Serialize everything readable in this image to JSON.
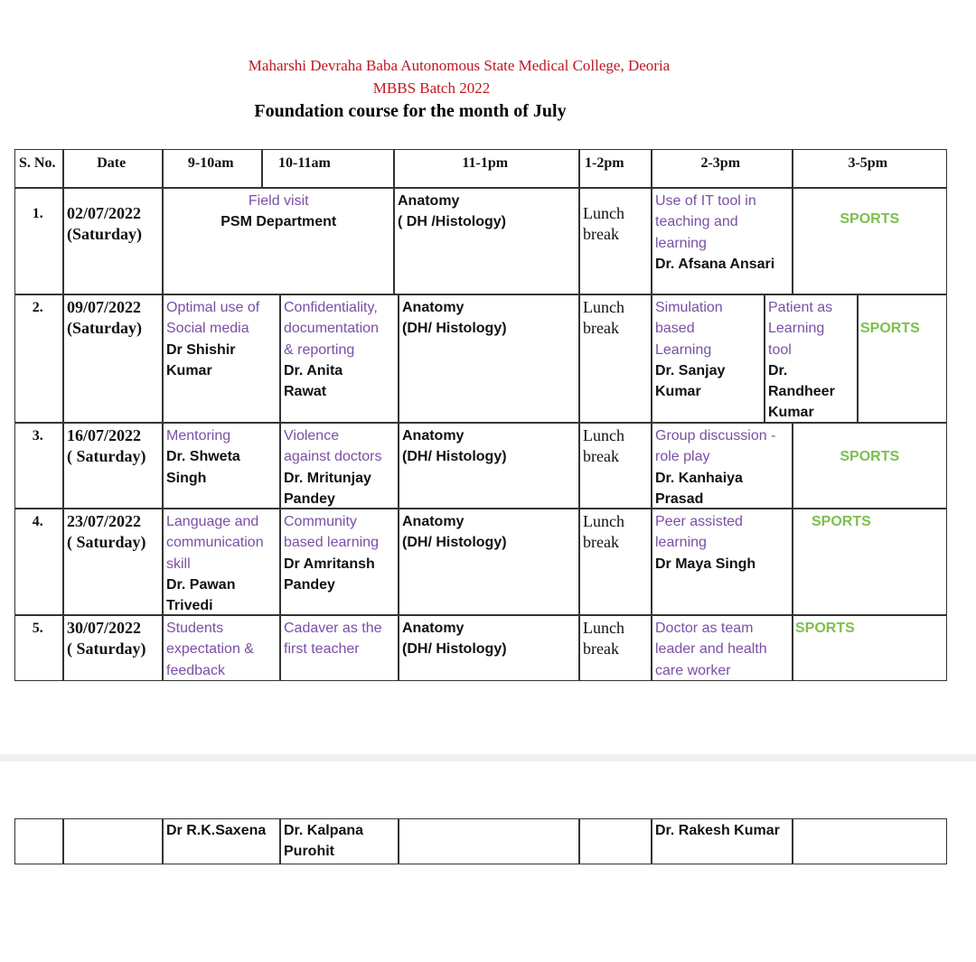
{
  "header": {
    "college": "Maharshi Devraha Baba Autonomous State Medical College, Deoria",
    "batch": "MBBS Batch 2022",
    "title": "Foundation course for the month of July"
  },
  "colors": {
    "topic": "#7a4fa6",
    "sports": "#7dbf4e",
    "heading_red": "#c0171f"
  },
  "table": {
    "columns": [
      "S. No.",
      "Date",
      "9-10am",
      "10-11am",
      "11-1pm",
      "1-2pm",
      "2-3pm",
      "3-5pm"
    ],
    "rows": [
      {
        "cells": [
          [
            {
              "text": "1.",
              "style": "head"
            }
          ],
          [
            {
              "text": "02/07/2022",
              "style": "serifbold"
            },
            {
              "text": "(Saturday)",
              "style": "serifbold"
            }
          ],
          [
            {
              "text": "Field visit",
              "style": "topic"
            },
            {
              "text": "PSM Department",
              "style": "faculty"
            }
          ],
          [
            {
              "text": "Anatomy",
              "style": "faculty"
            },
            {
              "text": "( DH /Histology)",
              "style": "faculty"
            }
          ],
          [
            {
              "text": "Lunch",
              "style": "serif"
            },
            {
              "text": "break",
              "style": "serif"
            }
          ],
          [
            {
              "text": "Use of IT tool in",
              "style": "topic"
            },
            {
              "text": "teaching and",
              "style": "topic"
            },
            {
              "text": "learning",
              "style": "topic"
            },
            {
              "text": "Dr. Afsana Ansari",
              "style": "faculty"
            }
          ],
          [
            {
              "text": "SPORTS",
              "style": "sport"
            }
          ]
        ]
      },
      {
        "cells": [
          [
            {
              "text": "2.",
              "style": "head"
            }
          ],
          [
            {
              "text": "09/07/2022",
              "style": "serifbold"
            },
            {
              "text": "(Saturday)",
              "style": "serifbold"
            }
          ],
          [
            {
              "text": "Optimal use of",
              "style": "topic"
            },
            {
              "text": "Social media",
              "style": "topic"
            },
            {
              "text": "Dr Shishir",
              "style": "faculty"
            },
            {
              "text": "Kumar",
              "style": "faculty"
            }
          ],
          [
            {
              "text": "Confidentiality,",
              "style": "topic"
            },
            {
              "text": "documentation",
              "style": "topic"
            },
            {
              "text": "& reporting",
              "style": "topic"
            },
            {
              "text": "Dr. Anita",
              "style": "faculty"
            },
            {
              "text": "Rawat",
              "style": "faculty"
            }
          ],
          [
            {
              "text": "Anatomy",
              "style": "faculty"
            },
            {
              "text": "(DH/ Histology)",
              "style": "faculty"
            }
          ],
          [
            {
              "text": "Lunch",
              "style": "serif"
            },
            {
              "text": "break",
              "style": "serif"
            }
          ],
          [
            {
              "text": "Simulation",
              "style": "topic"
            },
            {
              "text": "based",
              "style": "topic"
            },
            {
              "text": "Learning",
              "style": "topic"
            },
            {
              "text": "Dr. Sanjay",
              "style": "faculty"
            },
            {
              "text": "Kumar",
              "style": "faculty"
            }
          ],
          [
            {
              "text": "Patient as",
              "style": "topic"
            },
            {
              "text": "Learning",
              "style": "topic"
            },
            {
              "text": "tool",
              "style": "topic"
            },
            {
              "text": "Dr.",
              "style": "faculty"
            },
            {
              "text": "Randheer",
              "style": "faculty"
            },
            {
              "text": "Kumar",
              "style": "faculty"
            }
          ],
          [
            {
              "text": "SPORTS",
              "style": "sport"
            }
          ]
        ]
      },
      {
        "cells": [
          [
            {
              "text": "3.",
              "style": "head"
            }
          ],
          [
            {
              "text": "16/07/2022",
              "style": "serifbold"
            },
            {
              "text": "( Saturday)",
              "style": "serifbold"
            }
          ],
          [
            {
              "text": "Mentoring",
              "style": "topic"
            },
            {
              "text": "Dr. Shweta",
              "style": "faculty"
            },
            {
              "text": "Singh",
              "style": "faculty"
            }
          ],
          [
            {
              "text": "Violence",
              "style": "topic"
            },
            {
              "text": "against doctors",
              "style": "topic"
            },
            {
              "text": "Dr. Mritunjay",
              "style": "faculty"
            },
            {
              "text": "Pandey",
              "style": "faculty"
            }
          ],
          [
            {
              "text": "Anatomy",
              "style": "faculty"
            },
            {
              "text": "(DH/ Histology)",
              "style": "faculty"
            }
          ],
          [
            {
              "text": "Lunch",
              "style": "serif"
            },
            {
              "text": "break",
              "style": "serif"
            }
          ],
          [
            {
              "text": "Group discussion -",
              "style": "topic"
            },
            {
              "text": "role play",
              "style": "topic"
            },
            {
              "text": "Dr. Kanhaiya",
              "style": "faculty"
            },
            {
              "text": "Prasad",
              "style": "faculty"
            }
          ],
          [
            {
              "text": "SPORTS",
              "style": "sport"
            }
          ]
        ]
      },
      {
        "cells": [
          [
            {
              "text": "4.",
              "style": "head"
            }
          ],
          [
            {
              "text": "23/07/2022",
              "style": "serifbold"
            },
            {
              "text": "( Saturday)",
              "style": "serifbold"
            }
          ],
          [
            {
              "text": "Language and",
              "style": "topic"
            },
            {
              "text": "communication",
              "style": "topic"
            },
            {
              "text": "skill",
              "style": "topic"
            },
            {
              "text": " Dr. Pawan",
              "style": "faculty"
            },
            {
              "text": "Trivedi",
              "style": "faculty"
            }
          ],
          [
            {
              "text": "Community",
              "style": "topic"
            },
            {
              "text": "based learning",
              "style": "topic"
            },
            {
              "text": "Dr Amritansh",
              "style": "faculty"
            },
            {
              "text": "Pandey",
              "style": "faculty"
            }
          ],
          [
            {
              "text": "Anatomy",
              "style": "faculty"
            },
            {
              "text": "(DH/ Histology)",
              "style": "faculty"
            }
          ],
          [
            {
              "text": "Lunch",
              "style": "serif"
            },
            {
              "text": "break",
              "style": "serif"
            }
          ],
          [
            {
              "text": "Peer assisted",
              "style": "topic"
            },
            {
              "text": "learning",
              "style": "topic"
            },
            {
              "text": "Dr Maya Singh",
              "style": "faculty"
            }
          ],
          [
            {
              "text": "SPORTS",
              "style": "sport"
            }
          ]
        ]
      },
      {
        "cells": [
          [
            {
              "text": "5.",
              "style": "head"
            }
          ],
          [
            {
              "text": "30/07/2022",
              "style": "serifbold"
            },
            {
              "text": "( Saturday)",
              "style": "serifbold"
            }
          ],
          [
            {
              "text": "Students",
              "style": "topic"
            },
            {
              "text": "expectation &",
              "style": "topic"
            },
            {
              "text": "feedback",
              "style": "topic"
            }
          ],
          [
            {
              "text": "Cadaver as the",
              "style": "topic"
            },
            {
              "text": "first teacher",
              "style": "topic"
            }
          ],
          [
            {
              "text": "Anatomy",
              "style": "faculty"
            },
            {
              "text": "(DH/ Histology)",
              "style": "faculty"
            }
          ],
          [
            {
              "text": "Lunch",
              "style": "serif"
            },
            {
              "text": "break",
              "style": "serif"
            }
          ],
          [
            {
              "text": "Doctor as team",
              "style": "topic"
            },
            {
              "text": "leader and health",
              "style": "topic"
            },
            {
              "text": "care worker",
              "style": "topic"
            }
          ],
          [
            {
              "text": "SPORTS",
              "style": "sport"
            }
          ]
        ]
      }
    ],
    "signatures": [
      [],
      [],
      [
        {
          "text": "Dr R.K.Saxena",
          "style": "faculty"
        }
      ],
      [
        {
          "text": "Dr. Kalpana",
          "style": "faculty"
        },
        {
          "text": "Purohit",
          "style": "faculty"
        }
      ],
      [],
      [],
      [
        {
          "text": "Dr. Rakesh Kumar",
          "style": "faculty"
        }
      ],
      []
    ]
  }
}
